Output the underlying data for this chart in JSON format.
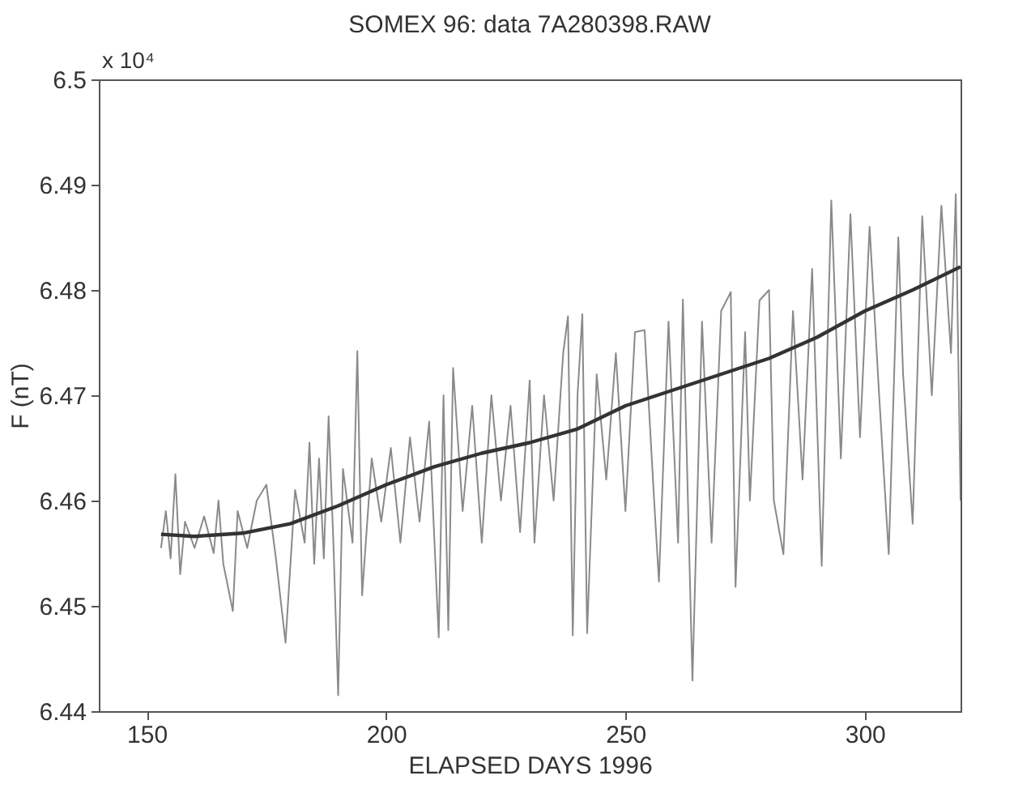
{
  "chart_data": {
    "type": "line",
    "title": "SOMEX 96: data 7A280398.RAW",
    "xlabel": "ELAPSED DAYS 1996",
    "ylabel": "F (nT)",
    "annotations": [
      "x 10⁴"
    ],
    "xlim": [
      140,
      320
    ],
    "xticks": [
      150,
      200,
      250,
      300
    ],
    "ylim": [
      6.44,
      6.5
    ],
    "yticks": [
      6.44,
      6.45,
      6.46,
      6.47,
      6.48,
      6.49,
      6.5
    ],
    "grid": false,
    "series": [
      {
        "color": "#8a8a8a",
        "x": [
          153,
          154,
          155,
          156,
          157,
          158,
          160,
          162,
          164,
          165,
          166,
          168,
          169,
          171,
          173,
          175,
          177,
          179,
          181,
          183,
          184,
          185,
          186,
          187,
          188,
          189,
          190,
          191,
          193,
          194,
          195,
          197,
          199,
          201,
          203,
          205,
          207,
          209,
          211,
          212,
          213,
          214,
          216,
          218,
          220,
          222,
          224,
          226,
          228,
          230,
          231,
          233,
          235,
          237,
          238,
          239,
          240,
          241,
          242,
          244,
          246,
          248,
          250,
          252,
          254,
          256,
          257,
          259,
          261,
          262,
          264,
          266,
          268,
          270,
          272,
          273,
          275,
          276,
          278,
          280,
          281,
          283,
          285,
          287,
          289,
          291,
          293,
          295,
          297,
          299,
          301,
          303,
          305,
          307,
          308,
          310,
          312,
          314,
          316,
          318,
          319,
          320
        ],
        "values": [
          6.4555,
          6.459,
          6.4545,
          6.4625,
          6.453,
          6.458,
          6.4555,
          6.4585,
          6.455,
          6.46,
          6.454,
          6.4495,
          6.459,
          6.4555,
          6.46,
          6.4615,
          6.4545,
          6.4465,
          6.461,
          6.456,
          6.4655,
          6.454,
          6.464,
          6.4545,
          6.468,
          6.456,
          6.4415,
          6.463,
          6.456,
          6.4742,
          6.451,
          6.464,
          6.458,
          6.465,
          6.456,
          6.466,
          6.458,
          6.4675,
          6.447,
          6.47,
          6.4477,
          6.4726,
          6.459,
          6.469,
          6.456,
          6.47,
          6.46,
          6.469,
          6.457,
          6.4714,
          6.456,
          6.47,
          6.46,
          6.474,
          6.4775,
          6.4472,
          6.47,
          6.4777,
          6.4474,
          6.472,
          6.462,
          6.474,
          6.459,
          6.476,
          6.4762,
          6.46,
          6.4523,
          6.477,
          6.456,
          6.4791,
          6.4429,
          6.477,
          6.456,
          6.478,
          6.4798,
          6.4518,
          6.476,
          6.46,
          6.479,
          6.48,
          6.46,
          6.4549,
          6.478,
          6.462,
          6.482,
          6.4538,
          6.4885,
          6.464,
          6.4872,
          6.466,
          6.486,
          6.47,
          6.4549,
          6.485,
          6.472,
          6.4578,
          6.487,
          6.47,
          6.488,
          6.474,
          6.4891,
          6.46
        ]
      },
      {
        "color": "#333333",
        "x": [
          153,
          160,
          170,
          180,
          190,
          200,
          210,
          220,
          230,
          240,
          250,
          260,
          270,
          280,
          290,
          300,
          310,
          320
        ],
        "values": [
          6.4568,
          6.4566,
          6.4569,
          6.4578,
          6.4595,
          6.4615,
          6.4632,
          6.4645,
          6.4655,
          6.4668,
          6.469,
          6.4705,
          6.472,
          6.4735,
          6.4755,
          6.478,
          6.48,
          6.4822
        ]
      }
    ]
  }
}
